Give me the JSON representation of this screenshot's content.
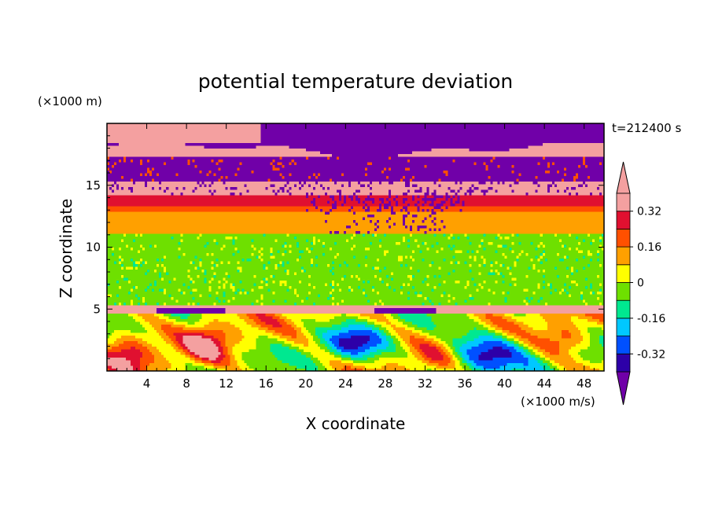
{
  "chart_data": {
    "type": "heatmap",
    "title": "potential temperature deviation",
    "xlabel": "X coordinate",
    "ylabel": "Z coordinate",
    "x_unit": "(×1000 m/s)",
    "y_unit": "(×1000 m)",
    "time_label": "t=212400 s",
    "xlim": [
      0,
      50
    ],
    "ylim": [
      0,
      20
    ],
    "xticks": [
      4,
      8,
      12,
      16,
      20,
      24,
      28,
      32,
      36,
      40,
      44,
      48
    ],
    "yticks": [
      5,
      10,
      15
    ],
    "colorbar": {
      "levels": [
        -0.4,
        -0.32,
        -0.24,
        -0.16,
        -0.08,
        0,
        0.08,
        0.16,
        0.24,
        0.32,
        0.4
      ],
      "labels": [
        "0.32",
        "0.16",
        "0",
        "-0.16",
        "-0.32"
      ],
      "label_values": [
        0.32,
        0.16,
        0,
        -0.16,
        -0.32
      ],
      "colors": [
        "#7000a8",
        "#2d00a8",
        "#0050ff",
        "#00c8ff",
        "#00e890",
        "#6ee000",
        "#ffff00",
        "#ffa000",
        "#ff5000",
        "#e01030",
        "#f4a0a0"
      ],
      "extend": "both"
    },
    "bands": [
      {
        "z": [
          18.2,
          20
        ],
        "value": -0.45,
        "note": "mixed pink/purple"
      },
      {
        "z": [
          17.4,
          18.2
        ],
        "value": 0.45
      },
      {
        "z": [
          15.4,
          17.4
        ],
        "value": -0.45
      },
      {
        "z": [
          14.2,
          15.4
        ],
        "value": 0.45
      },
      {
        "z": [
          13.4,
          14.2
        ],
        "value": 0.3
      },
      {
        "z": [
          12.8,
          13.4
        ],
        "value": 0.22
      },
      {
        "z": [
          11.0,
          12.8
        ],
        "value": 0.12
      },
      {
        "z": [
          5.4,
          11.0
        ],
        "value": -0.02
      },
      {
        "z": [
          4.6,
          5.4
        ],
        "value": 0.45
      },
      {
        "z": [
          0,
          4.6
        ],
        "value": 0.05,
        "note": "turbulent, mixed"
      }
    ]
  }
}
